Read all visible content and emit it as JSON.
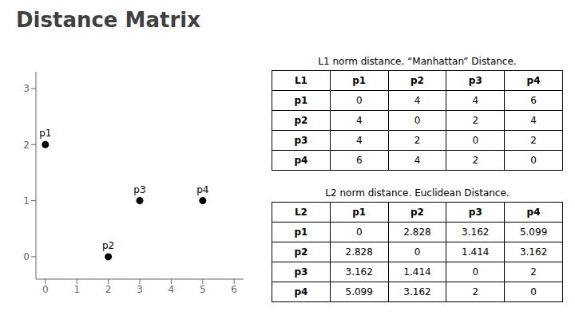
{
  "chart_data": [
    {
      "type": "scatter",
      "title": "Distance Matrix",
      "x": [
        0,
        2,
        3,
        5
      ],
      "values": [
        2,
        0,
        1,
        1
      ],
      "annotations": [
        {
          "text": "p1",
          "x": 0,
          "y": 2
        },
        {
          "text": "p2",
          "x": 2,
          "y": 0
        },
        {
          "text": "p3",
          "x": 3,
          "y": 1
        },
        {
          "text": "p4",
          "x": 5,
          "y": 1
        }
      ],
      "xlim": [
        -0.3,
        6.3
      ],
      "xticks": [
        0,
        1,
        2,
        3,
        4,
        5,
        6
      ],
      "ylim": [
        -0.4,
        3.3
      ],
      "yticks": [
        0,
        1,
        2,
        3
      ],
      "grid": false
    },
    {
      "type": "table",
      "title": "L1 norm distance. “Manhattan” Distance.",
      "columns": [
        "L1",
        "p1",
        "p2",
        "p3",
        "p4"
      ],
      "rows": [
        [
          "p1",
          "0",
          "4",
          "4",
          "6"
        ],
        [
          "p2",
          "4",
          "0",
          "2",
          "4"
        ],
        [
          "p3",
          "4",
          "2",
          "0",
          "2"
        ],
        [
          "p4",
          "6",
          "4",
          "2",
          "0"
        ]
      ]
    },
    {
      "type": "table",
      "title": "L2 norm distance. Euclidean Distance.",
      "columns": [
        "L2",
        "p1",
        "p2",
        "p3",
        "p4"
      ],
      "rows": [
        [
          "p1",
          "0",
          "2.828",
          "3.162",
          "5.099"
        ],
        [
          "p2",
          "2.828",
          "0",
          "1.414",
          "3.162"
        ],
        [
          "p3",
          "3.162",
          "1.414",
          "0",
          "2"
        ],
        [
          "p4",
          "5.099",
          "3.162",
          "2",
          "0"
        ]
      ]
    }
  ]
}
